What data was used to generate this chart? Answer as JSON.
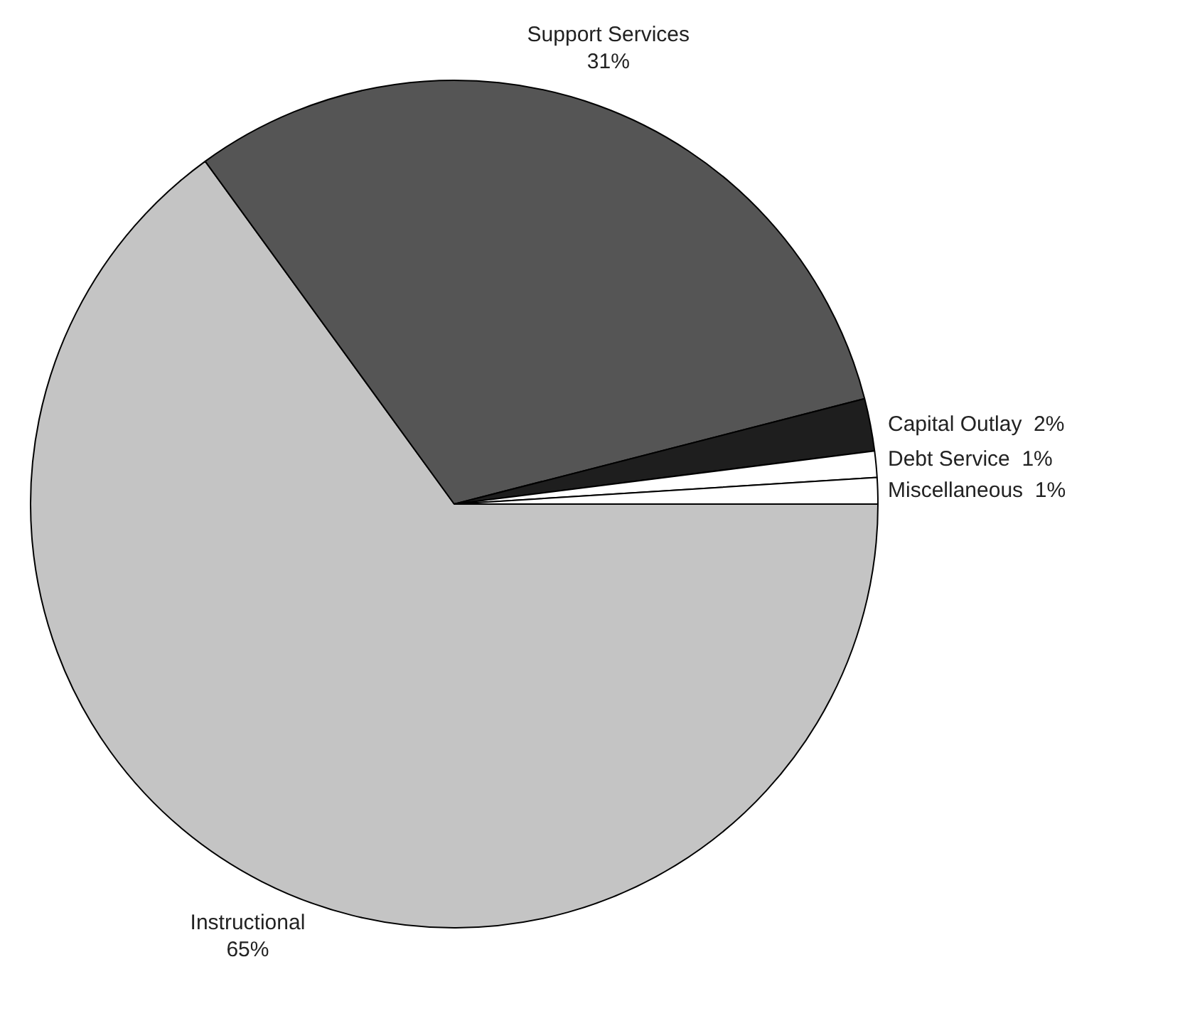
{
  "chart_data": {
    "type": "pie",
    "categories": [
      "Instructional",
      "Support Services",
      "Capital Outlay",
      "Debt Service",
      "Miscellaneous"
    ],
    "values": [
      65,
      31,
      2,
      1,
      1
    ],
    "value_labels": [
      "65%",
      "31%",
      "2%",
      "1%",
      "1%"
    ],
    "colors": [
      "#c4c4c4",
      "#555555",
      "#1e1e1e",
      "#ffffff",
      "#ffffff"
    ],
    "legend": false
  }
}
